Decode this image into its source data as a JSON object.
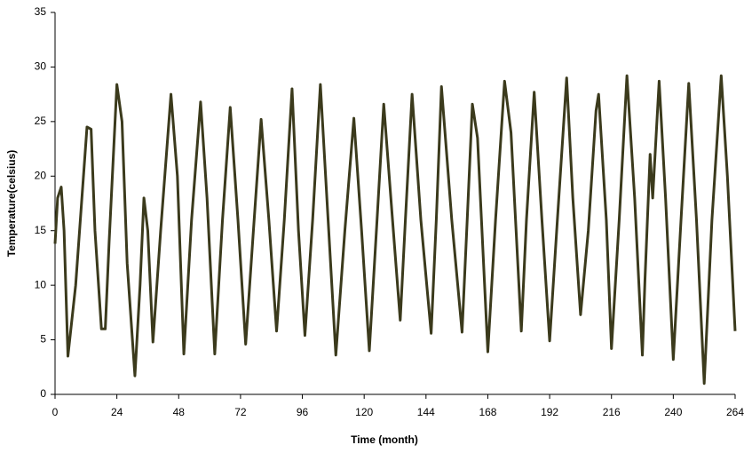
{
  "chart_data": {
    "type": "line",
    "x_label": "Time (month)",
    "y_label": "Temperature(celsius)",
    "color": "#3b3a1c",
    "grid": false,
    "xlim": [
      0,
      264
    ],
    "xticks": [
      0,
      24,
      48,
      72,
      96,
      120,
      144,
      168,
      192,
      216,
      240,
      264
    ],
    "ylim": [
      0,
      35
    ],
    "yticks": [
      0,
      5,
      10,
      15,
      20,
      25,
      30,
      35
    ],
    "x": [
      0,
      1,
      2.4,
      3.5,
      5,
      8,
      12.4,
      14,
      15.5,
      18,
      19.5,
      21,
      24,
      26,
      28,
      31,
      33,
      34.5,
      36,
      38,
      41,
      45,
      47.5,
      50,
      53,
      56.5,
      59,
      62,
      65,
      68,
      71,
      74,
      77,
      80,
      83,
      86,
      89,
      92,
      94.5,
      97,
      100,
      103,
      106,
      109,
      112.5,
      116,
      119,
      122,
      125,
      127.6,
      131,
      134,
      136,
      138.6,
      142,
      146,
      148,
      150,
      154,
      158,
      160,
      162,
      164,
      168,
      171,
      174.5,
      177,
      181,
      183,
      186,
      189,
      192,
      195,
      198.6,
      201,
      204,
      207,
      210,
      211,
      214,
      216,
      219,
      222,
      225,
      228,
      229,
      231,
      232,
      234.5,
      237,
      240,
      243,
      246,
      249,
      252,
      255,
      258.6,
      261,
      264
    ],
    "values": [
      13.8,
      18,
      19,
      15,
      3.5,
      10,
      24.5,
      24.3,
      15,
      6,
      6,
      14,
      28.4,
      25,
      12,
      1.7,
      10,
      18,
      15,
      4.8,
      15,
      27.5,
      20,
      3.7,
      16,
      26.8,
      18,
      3.7,
      16,
      26.3,
      16,
      4.6,
      15,
      25.2,
      16,
      5.8,
      16,
      28,
      15,
      5.4,
      16,
      28.4,
      16,
      3.6,
      15,
      25.3,
      15,
      4,
      16,
      26.6,
      16,
      6.8,
      16,
      27.5,
      16,
      5.6,
      16,
      28.2,
      16,
      5.7,
      16,
      26.6,
      23.5,
      3.9,
      16,
      28.7,
      24,
      5.8,
      16,
      27.7,
      16,
      4.9,
      16,
      29,
      18,
      7.3,
      15,
      26,
      27.5,
      16,
      4.2,
      16,
      29.2,
      18,
      3.6,
      10.5,
      22,
      18,
      28.7,
      18,
      3.2,
      16,
      28.5,
      16,
      1,
      16,
      29.2,
      20,
      5.8
    ]
  }
}
